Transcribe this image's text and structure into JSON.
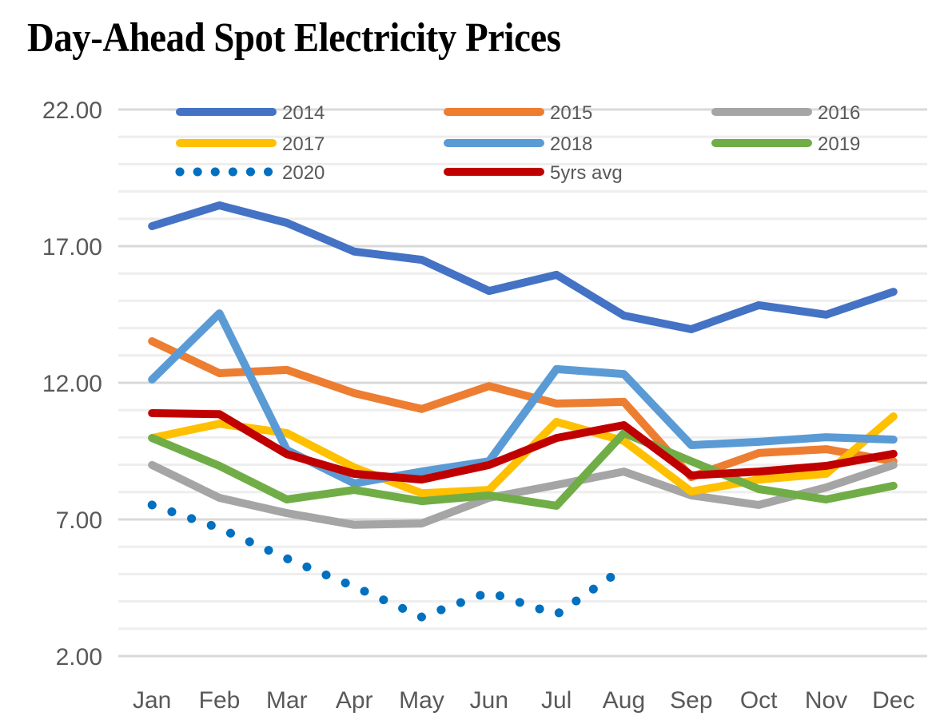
{
  "chart_data": {
    "type": "line",
    "title": "Day-Ahead Spot Electricity Prices",
    "xlabel": "",
    "ylabel": "",
    "categories": [
      "Jan",
      "Feb",
      "Mar",
      "Apr",
      "May",
      "Jun",
      "Jul",
      "Aug",
      "Sep",
      "Oct",
      "Nov",
      "Dec"
    ],
    "ylim": [
      2,
      22
    ],
    "yticks": [
      2,
      7,
      12,
      17,
      22
    ],
    "ytick_labels": [
      "2.00",
      "7.00",
      "12.00",
      "17.00",
      "22.00"
    ],
    "minor_gridline_step": 1,
    "grid": true,
    "legend_position": "top",
    "series": [
      {
        "name": "2014",
        "color": "#4472C4",
        "style": "solid",
        "values": [
          17.73,
          18.49,
          17.85,
          16.8,
          16.5,
          15.36,
          15.95,
          14.46,
          13.96,
          14.84,
          14.49,
          15.33
        ]
      },
      {
        "name": "2015",
        "color": "#ED7D31",
        "style": "solid",
        "values": [
          13.52,
          12.35,
          12.47,
          11.62,
          11.04,
          11.88,
          11.24,
          11.3,
          8.55,
          9.43,
          9.57,
          9.13
        ]
      },
      {
        "name": "2016",
        "color": "#A5A5A5",
        "style": "solid",
        "values": [
          8.99,
          7.79,
          7.23,
          6.8,
          6.85,
          7.79,
          8.26,
          8.75,
          7.88,
          7.53,
          8.17,
          8.99
        ]
      },
      {
        "name": "2017",
        "color": "#FFC000",
        "style": "solid",
        "values": [
          9.98,
          10.5,
          10.16,
          8.9,
          7.96,
          8.08,
          10.57,
          9.87,
          8.02,
          8.46,
          8.67,
          10.77
        ]
      },
      {
        "name": "2018",
        "color": "#5B9BD5",
        "style": "solid",
        "values": [
          12.12,
          14.54,
          9.54,
          8.32,
          8.75,
          9.13,
          12.5,
          12.32,
          9.72,
          9.84,
          10.01,
          9.92
        ]
      },
      {
        "name": "2019",
        "color": "#70AD47",
        "style": "solid",
        "values": [
          9.98,
          8.96,
          7.73,
          8.08,
          7.67,
          7.88,
          7.5,
          10.16,
          9.13,
          8.11,
          7.73,
          8.23
        ]
      },
      {
        "name": "2020",
        "color": "#0070C0",
        "style": "dotted",
        "values": [
          7.53,
          6.68,
          5.57,
          4.54,
          3.43,
          4.34,
          3.52,
          5.22,
          null,
          null,
          null,
          null
        ]
      },
      {
        "name": "5yrs avg",
        "color": "#C00000",
        "style": "solid",
        "values": [
          10.89,
          10.85,
          9.39,
          8.67,
          8.46,
          8.99,
          9.98,
          10.45,
          8.61,
          8.75,
          8.96,
          9.4
        ]
      }
    ],
    "legend_order": [
      "2014",
      "2015",
      "2016",
      "2017",
      "2018",
      "2019",
      "2020",
      "5yrs avg"
    ]
  }
}
